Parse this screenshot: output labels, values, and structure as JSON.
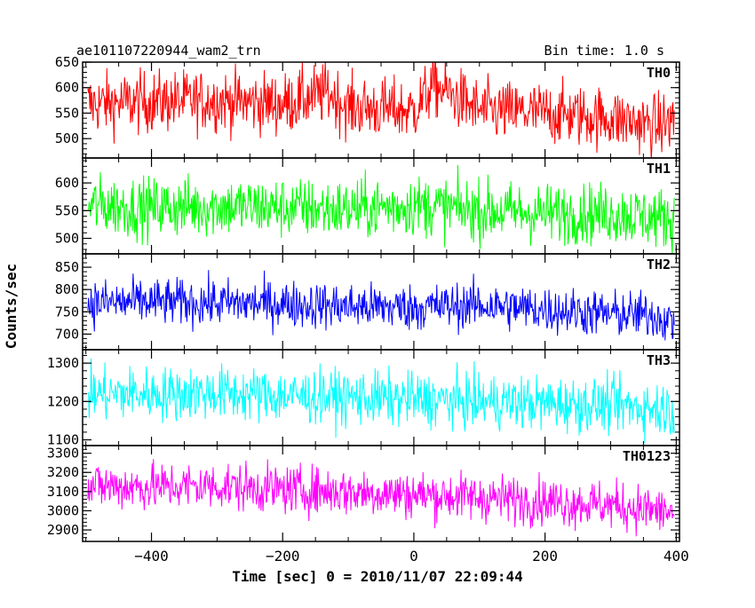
{
  "header": {
    "title": "ae101107220944_wam2_trn",
    "bin_time": "Bin time: 1.0 s"
  },
  "colors": {
    "TH0": "#ff0000",
    "TH1": "#00ff00",
    "TH2": "#0000ff",
    "TH3": "#00ffff",
    "TH0123": "#ff00ff",
    "frame": "#000000",
    "background": "#ffffff"
  },
  "chart_data": {
    "type": "line",
    "xlabel": "Time [sec] 0 = 2010/11/07 22:09:44",
    "ylabel": "Counts/sec",
    "xlim": [
      -505,
      405
    ],
    "x_ticks": [
      -400,
      -200,
      0,
      200,
      400
    ],
    "x_tick_labels": [
      "−400",
      "−200",
      "0",
      "200",
      "400"
    ],
    "x_range_data": [
      -497,
      397
    ],
    "bin_time": 1.0,
    "panels": [
      {
        "name": "TH0",
        "ylim": [
          462,
          650
        ],
        "y_ticks": [
          500,
          550,
          600,
          650
        ],
        "series": {
          "mean_start": 570,
          "mean_end": 540,
          "scatter": 30,
          "anchors": [
            [
              -495,
              568
            ],
            [
              -400,
              572
            ],
            [
              -300,
              575
            ],
            [
              -200,
              568
            ],
            [
              -130,
              590
            ],
            [
              -100,
              562
            ],
            [
              0,
              555
            ],
            [
              30,
              605
            ],
            [
              100,
              555
            ],
            [
              200,
              550
            ],
            [
              300,
              540
            ],
            [
              370,
              525
            ],
            [
              395,
              535
            ]
          ]
        }
      },
      {
        "name": "TH1",
        "ylim": [
          472,
          645
        ],
        "y_ticks": [
          500,
          550,
          600
        ],
        "series": {
          "mean_start": 560,
          "mean_end": 535,
          "scatter": 27,
          "anchors": [
            [
              -495,
              560
            ],
            [
              -400,
              555
            ],
            [
              -300,
              558
            ],
            [
              -200,
              555
            ],
            [
              -100,
              552
            ],
            [
              0,
              560
            ],
            [
              100,
              550
            ],
            [
              200,
              545
            ],
            [
              300,
              545
            ],
            [
              395,
              535
            ]
          ]
        }
      },
      {
        "name": "TH2",
        "ylim": [
          665,
          880
        ],
        "y_ticks": [
          700,
          750,
          800,
          850
        ],
        "series": {
          "mean_start": 770,
          "mean_end": 735,
          "scatter": 26,
          "anchors": [
            [
              -495,
              770
            ],
            [
              -400,
              772
            ],
            [
              -300,
              770
            ],
            [
              -200,
              768
            ],
            [
              -100,
              762
            ],
            [
              0,
              760
            ],
            [
              100,
              765
            ],
            [
              200,
              755
            ],
            [
              300,
              745
            ],
            [
              370,
              742
            ],
            [
              395,
              725
            ]
          ]
        }
      },
      {
        "name": "TH3",
        "ylim": [
          1085,
          1335
        ],
        "y_ticks": [
          1100,
          1200,
          1300
        ],
        "series": {
          "mean_start": 1220,
          "mean_end": 1185,
          "scatter": 35,
          "anchors": [
            [
              -495,
              1220
            ],
            [
              -400,
              1220
            ],
            [
              -300,
              1222
            ],
            [
              -200,
              1215
            ],
            [
              -100,
              1210
            ],
            [
              0,
              1205
            ],
            [
              100,
              1200
            ],
            [
              200,
              1195
            ],
            [
              300,
              1190
            ],
            [
              395,
              1180
            ]
          ]
        }
      },
      {
        "name": "TH0123",
        "ylim": [
          2840,
          3340
        ],
        "y_ticks": [
          2900,
          3000,
          3100,
          3200,
          3300
        ],
        "series": {
          "mean_start": 3130,
          "mean_end": 2990,
          "scatter": 62,
          "anchors": [
            [
              -495,
              3130
            ],
            [
              -400,
              3125
            ],
            [
              -300,
              3130
            ],
            [
              -200,
              3110
            ],
            [
              -100,
              3100
            ],
            [
              0,
              3085
            ],
            [
              100,
              3070
            ],
            [
              200,
              3050
            ],
            [
              300,
              3030
            ],
            [
              395,
              2990
            ]
          ]
        }
      }
    ]
  }
}
